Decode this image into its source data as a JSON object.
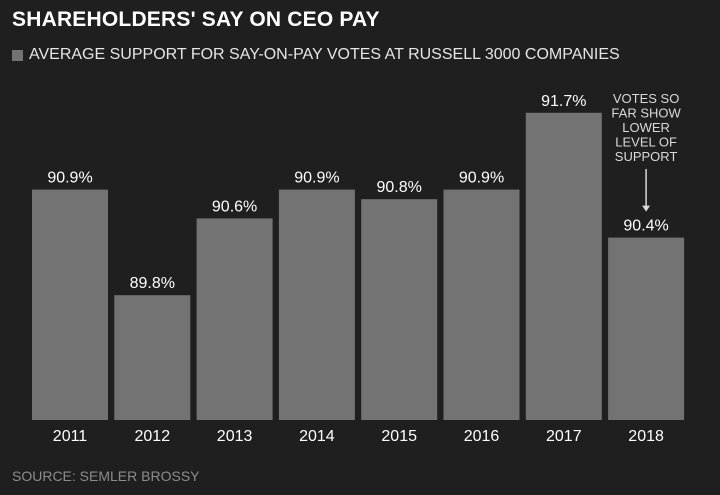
{
  "colors": {
    "background": "#1f1f1f",
    "bar": "#737373",
    "text": "#ffffff",
    "annotation": "#d9d9d9",
    "source": "#8c8c8c"
  },
  "chart_data": {
    "type": "bar",
    "title": "SHAREHOLDERS' SAY ON CEO PAY",
    "legend": [
      "AVERAGE SUPPORT FOR SAY-ON-PAY VOTES AT RUSSELL 3000 COMPANIES"
    ],
    "categories": [
      "2011",
      "2012",
      "2013",
      "2014",
      "2015",
      "2016",
      "2017",
      "2018"
    ],
    "series": [
      {
        "name": "AVERAGE SUPPORT FOR SAY-ON-PAY VOTES AT RUSSELL 3000 COMPANIES",
        "values": [
          90.9,
          89.8,
          90.6,
          90.9,
          90.8,
          90.9,
          91.7,
          90.4
        ]
      }
    ],
    "value_labels": [
      "90.9%",
      "89.8%",
      "90.6%",
      "90.9%",
      "90.8%",
      "90.9%",
      "91.7%",
      "90.4%"
    ],
    "ylim": [
      88.5,
      92.0
    ],
    "xlabel": "",
    "ylabel": "",
    "grid": false,
    "annotation": {
      "category": "2018",
      "lines": [
        "VOTES SO",
        "FAR SHOW",
        "LOWER",
        "LEVEL OF",
        "SUPPORT"
      ]
    },
    "source": "SOURCE: SEMLER BROSSY"
  }
}
